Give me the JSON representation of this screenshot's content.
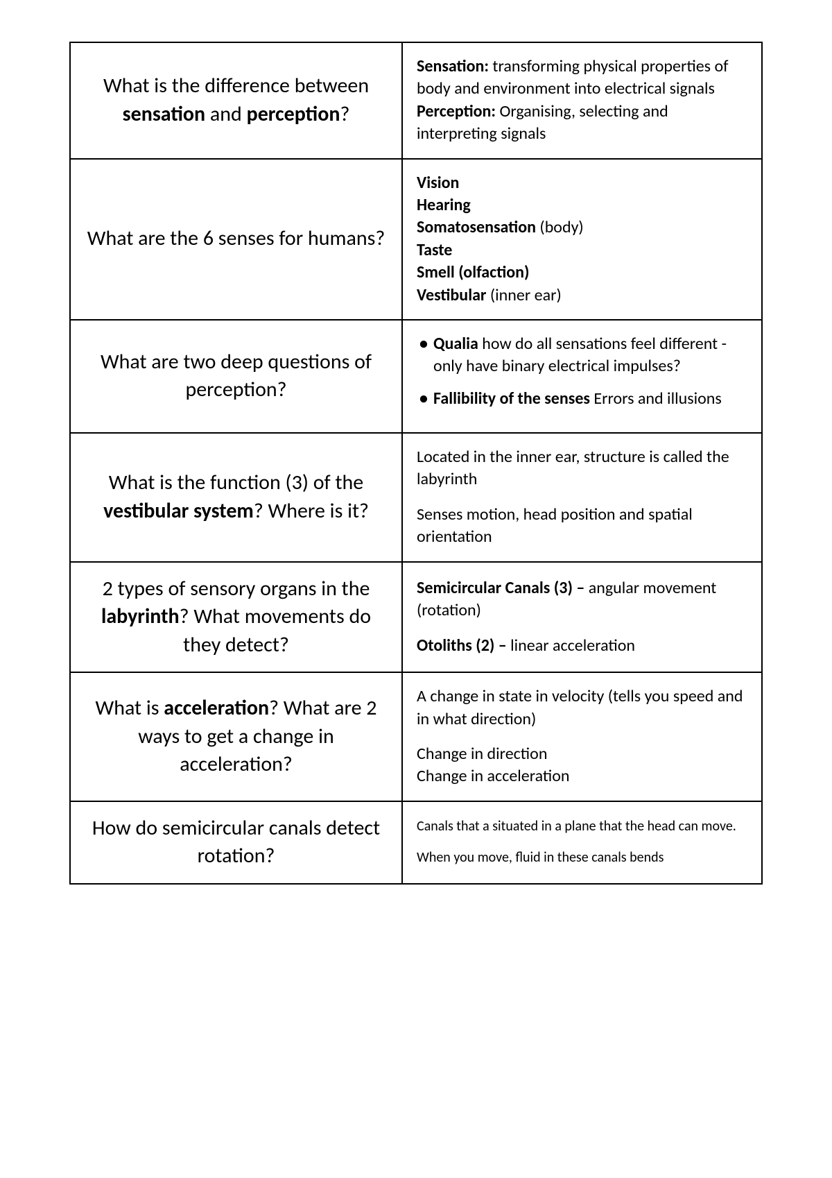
{
  "rows": [
    {
      "question": {
        "segments": [
          {
            "text": "What is the difference between ",
            "bold": false
          },
          {
            "text": "sensation",
            "bold": true
          },
          {
            "text": " and ",
            "bold": false
          },
          {
            "text": "perception",
            "bold": true
          },
          {
            "text": "?",
            "bold": false
          }
        ]
      },
      "answer": {
        "type": "segments",
        "segments": [
          {
            "text": "Sensation:",
            "bold": true
          },
          {
            "text": " transforming physical properties of body and environment into electrical signals",
            "bold": false
          },
          {
            "text": "\n",
            "bold": false
          },
          {
            "text": "Perception:",
            "bold": true
          },
          {
            "text": " Organising, selecting and interpreting signals",
            "bold": false
          }
        ]
      }
    },
    {
      "question": {
        "segments": [
          {
            "text": "What are the 6 senses for humans?",
            "bold": false
          }
        ]
      },
      "answer": {
        "type": "segments",
        "segments": [
          {
            "text": "Vision",
            "bold": true
          },
          {
            "text": "\n",
            "bold": false
          },
          {
            "text": "Hearing",
            "bold": true
          },
          {
            "text": "\n",
            "bold": false
          },
          {
            "text": "Somatosensation",
            "bold": true
          },
          {
            "text": " (body)",
            "bold": false
          },
          {
            "text": "\n",
            "bold": false
          },
          {
            "text": "Taste",
            "bold": true
          },
          {
            "text": "\n",
            "bold": false
          },
          {
            "text": "Smell (olfaction)",
            "bold": true
          },
          {
            "text": "\n",
            "bold": false
          },
          {
            "text": "Vestibular",
            "bold": true
          },
          {
            "text": " (inner ear)",
            "bold": false
          }
        ]
      }
    },
    {
      "question": {
        "segments": [
          {
            "text": "What are two deep questions of perception?",
            "bold": false
          }
        ]
      },
      "answer": {
        "type": "bullets",
        "bullets": [
          {
            "segments": [
              {
                "text": "Qualia",
                "bold": true
              },
              {
                "text": " how do all sensations feel different - only have binary electrical impulses?",
                "bold": false
              }
            ]
          },
          {
            "segments": [
              {
                "text": "Fallibility of the senses",
                "bold": true
              },
              {
                "text": " Errors and illusions",
                "bold": false
              }
            ]
          }
        ]
      }
    },
    {
      "question": {
        "segments": [
          {
            "text": "What is the function (3) of the ",
            "bold": false
          },
          {
            "text": "vestibular system",
            "bold": true
          },
          {
            "text": "? Where is it?",
            "bold": false
          }
        ]
      },
      "answer": {
        "type": "paragraphs",
        "paragraphs": [
          {
            "segments": [
              {
                "text": "Located in the inner ear, structure is called the labyrinth",
                "bold": false
              }
            ]
          },
          {
            "segments": [
              {
                "text": "Senses motion, head position and spatial orientation",
                "bold": false
              }
            ]
          }
        ]
      }
    },
    {
      "question": {
        "segments": [
          {
            "text": "2 types of sensory organs in the ",
            "bold": false
          },
          {
            "text": "labyrinth",
            "bold": true
          },
          {
            "text": "? What movements do they detect?",
            "bold": false
          }
        ]
      },
      "answer": {
        "type": "paragraphs",
        "paragraphs": [
          {
            "segments": [
              {
                "text": "Semicircular Canals (3) –",
                "bold": true
              },
              {
                "text": " angular movement (rotation)",
                "bold": false
              }
            ]
          },
          {
            "segments": [
              {
                "text": "Otoliths (2) –",
                "bold": true
              },
              {
                "text": " linear acceleration",
                "bold": false
              }
            ]
          }
        ]
      }
    },
    {
      "question": {
        "segments": [
          {
            "text": "What is ",
            "bold": false
          },
          {
            "text": "acceleration",
            "bold": true
          },
          {
            "text": "? What are 2 ways to get a change in acceleration?",
            "bold": false
          }
        ]
      },
      "answer": {
        "type": "paragraphs",
        "paragraphs": [
          {
            "segments": [
              {
                "text": "A change in state in velocity (tells you speed and in what direction)",
                "bold": false
              }
            ]
          },
          {
            "segments": [
              {
                "text": "Change in direction\nChange in acceleration",
                "bold": false
              }
            ]
          }
        ]
      }
    },
    {
      "question": {
        "segments": [
          {
            "text": "How do semicircular canals detect rotation?",
            "bold": false
          }
        ]
      },
      "answer": {
        "type": "paragraphs",
        "size": "smaller",
        "paragraphs": [
          {
            "segments": [
              {
                "text": "Canals that a situated in a plane that the head can move.",
                "bold": false
              }
            ]
          },
          {
            "segments": [
              {
                "text": "When you move, fluid in these canals bends",
                "bold": false
              }
            ]
          }
        ]
      }
    }
  ]
}
